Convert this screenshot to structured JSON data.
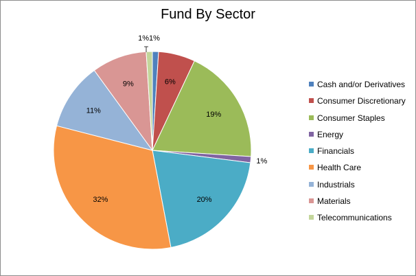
{
  "chart_data": {
    "type": "pie",
    "title": "Fund By Sector",
    "legend_position": "right",
    "categories": [
      "Cash and/or Derivatives",
      "Consumer Discretionary",
      "Consumer Staples",
      "Energy",
      "Financials",
      "Health Care",
      "Industrials",
      "Materials",
      "Telecommunications"
    ],
    "values": [
      1,
      6,
      19,
      1,
      20,
      32,
      11,
      9,
      1
    ],
    "data_labels": [
      "1%",
      "6%",
      "19%",
      "1%",
      "20%",
      "32%",
      "11%",
      "9%",
      "1%"
    ],
    "colors": [
      "#4f81bd",
      "#c0504d",
      "#9bbb59",
      "#8064a2",
      "#4bacc6",
      "#f79646",
      "#95b3d7",
      "#d99694",
      "#c3d69b"
    ]
  }
}
